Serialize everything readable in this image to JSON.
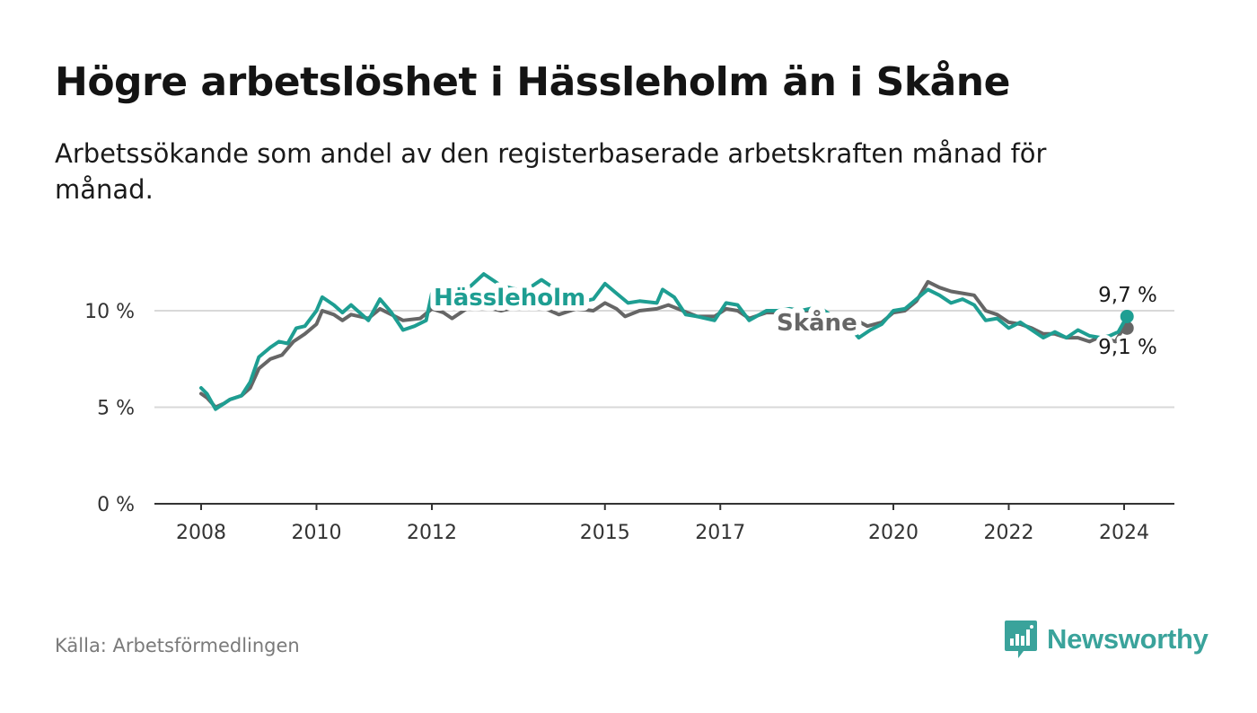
{
  "title": "Högre arbetslöshet i Hässleholm än i Skåne",
  "subtitle": "Arbetssökande som andel av den registerbaserade arbetskraften månad för månad.",
  "source": "Källa: Arbetsförmedlingen",
  "brand": {
    "name": "Newsworthy",
    "icon": "newsworthy-logo-icon",
    "color": "#3aa39b"
  },
  "colors": {
    "hassleholm": "#1e9e92",
    "skane": "#666666",
    "grid": "#d9d9d9",
    "axis": "#333333"
  },
  "chart_data": {
    "type": "line",
    "title": "Högre arbetslöshet i Hässleholm än i Skåne",
    "xlabel": "",
    "ylabel": "",
    "ylim": [
      0,
      12
    ],
    "xlim": [
      2007.75,
      2024.9
    ],
    "y_ticks": [
      {
        "value": 0,
        "label": "0 %"
      },
      {
        "value": 5,
        "label": "5 %"
      },
      {
        "value": 10,
        "label": "10 %"
      }
    ],
    "x_ticks": [
      {
        "value": 2008,
        "label": "2008"
      },
      {
        "value": 2010,
        "label": "2010"
      },
      {
        "value": 2012,
        "label": "2012"
      },
      {
        "value": 2015,
        "label": "2015"
      },
      {
        "value": 2017,
        "label": "2017"
      },
      {
        "value": 2020,
        "label": "2020"
      },
      {
        "value": 2022,
        "label": "2022"
      },
      {
        "value": 2024,
        "label": "2024"
      }
    ],
    "series": [
      {
        "name": "Skåne",
        "key": "skane",
        "label": "Skåne",
        "end_label": "9,1 %",
        "points": [
          [
            2008.0,
            5.7
          ],
          [
            2008.1,
            5.5
          ],
          [
            2008.25,
            5.0
          ],
          [
            2008.4,
            5.2
          ],
          [
            2008.5,
            5.4
          ],
          [
            2008.7,
            5.6
          ],
          [
            2008.85,
            6.0
          ],
          [
            2009.0,
            7.0
          ],
          [
            2009.2,
            7.5
          ],
          [
            2009.4,
            7.7
          ],
          [
            2009.6,
            8.4
          ],
          [
            2009.8,
            8.8
          ],
          [
            2010.0,
            9.3
          ],
          [
            2010.1,
            10.0
          ],
          [
            2010.3,
            9.8
          ],
          [
            2010.45,
            9.5
          ],
          [
            2010.6,
            9.8
          ],
          [
            2010.9,
            9.6
          ],
          [
            2011.1,
            10.1
          ],
          [
            2011.3,
            9.8
          ],
          [
            2011.5,
            9.5
          ],
          [
            2011.8,
            9.6
          ],
          [
            2012.0,
            10.1
          ],
          [
            2012.2,
            9.9
          ],
          [
            2012.35,
            9.6
          ],
          [
            2012.6,
            10.1
          ],
          [
            2012.9,
            10.2
          ],
          [
            2013.2,
            10.0
          ],
          [
            2013.5,
            10.2
          ],
          [
            2013.9,
            10.2
          ],
          [
            2014.2,
            9.8
          ],
          [
            2014.5,
            10.1
          ],
          [
            2014.8,
            10.0
          ],
          [
            2015.0,
            10.4
          ],
          [
            2015.2,
            10.1
          ],
          [
            2015.35,
            9.7
          ],
          [
            2015.6,
            10.0
          ],
          [
            2015.9,
            10.1
          ],
          [
            2016.1,
            10.3
          ],
          [
            2016.35,
            10.0
          ],
          [
            2016.6,
            9.7
          ],
          [
            2016.9,
            9.7
          ],
          [
            2017.1,
            10.1
          ],
          [
            2017.3,
            10.0
          ],
          [
            2017.5,
            9.6
          ],
          [
            2017.8,
            9.9
          ],
          [
            2018.0,
            9.9
          ],
          [
            2018.2,
            9.9
          ],
          [
            2018.4,
            10.0
          ],
          [
            2018.7,
            9.9
          ],
          [
            2019.0,
            9.7
          ],
          [
            2019.3,
            9.6
          ],
          [
            2019.55,
            9.2
          ],
          [
            2019.8,
            9.4
          ],
          [
            2020.0,
            9.9
          ],
          [
            2020.2,
            10.0
          ],
          [
            2020.4,
            10.5
          ],
          [
            2020.6,
            11.5
          ],
          [
            2020.8,
            11.2
          ],
          [
            2021.0,
            11.0
          ],
          [
            2021.2,
            10.9
          ],
          [
            2021.4,
            10.8
          ],
          [
            2021.6,
            10.0
          ],
          [
            2021.8,
            9.8
          ],
          [
            2022.0,
            9.4
          ],
          [
            2022.2,
            9.3
          ],
          [
            2022.4,
            9.1
          ],
          [
            2022.6,
            8.8
          ],
          [
            2022.8,
            8.8
          ],
          [
            2023.0,
            8.6
          ],
          [
            2023.2,
            8.6
          ],
          [
            2023.4,
            8.4
          ],
          [
            2023.55,
            8.6
          ],
          [
            2023.75,
            8.5
          ],
          [
            2023.85,
            8.4
          ],
          [
            2023.95,
            8.9
          ],
          [
            2024.05,
            9.1
          ]
        ]
      },
      {
        "name": "Hässleholm",
        "key": "hassleholm",
        "label": "Hässleholm",
        "end_label": "9,7 %",
        "points": [
          [
            2008.0,
            6.0
          ],
          [
            2008.1,
            5.7
          ],
          [
            2008.25,
            4.9
          ],
          [
            2008.4,
            5.2
          ],
          [
            2008.5,
            5.4
          ],
          [
            2008.7,
            5.6
          ],
          [
            2008.85,
            6.3
          ],
          [
            2009.0,
            7.6
          ],
          [
            2009.2,
            8.1
          ],
          [
            2009.35,
            8.4
          ],
          [
            2009.5,
            8.3
          ],
          [
            2009.65,
            9.1
          ],
          [
            2009.8,
            9.2
          ],
          [
            2010.0,
            10.0
          ],
          [
            2010.1,
            10.7
          ],
          [
            2010.3,
            10.3
          ],
          [
            2010.45,
            9.9
          ],
          [
            2010.6,
            10.3
          ],
          [
            2010.9,
            9.5
          ],
          [
            2011.1,
            10.6
          ],
          [
            2011.3,
            9.9
          ],
          [
            2011.5,
            9.0
          ],
          [
            2011.7,
            9.2
          ],
          [
            2011.9,
            9.5
          ],
          [
            2012.0,
            10.9
          ],
          [
            2012.2,
            11.2
          ],
          [
            2012.5,
            10.8
          ],
          [
            2012.9,
            11.9
          ],
          [
            2013.2,
            11.3
          ],
          [
            2013.6,
            11.0
          ],
          [
            2013.9,
            11.6
          ],
          [
            2014.2,
            11.0
          ],
          [
            2014.5,
            10.4
          ],
          [
            2014.8,
            10.6
          ],
          [
            2015.0,
            11.4
          ],
          [
            2015.2,
            10.9
          ],
          [
            2015.4,
            10.4
          ],
          [
            2015.6,
            10.5
          ],
          [
            2015.9,
            10.4
          ],
          [
            2016.0,
            11.1
          ],
          [
            2016.2,
            10.7
          ],
          [
            2016.4,
            9.8
          ],
          [
            2016.6,
            9.7
          ],
          [
            2016.9,
            9.5
          ],
          [
            2017.1,
            10.4
          ],
          [
            2017.3,
            10.3
          ],
          [
            2017.5,
            9.5
          ],
          [
            2017.8,
            10.0
          ],
          [
            2018.0,
            10.0
          ],
          [
            2018.2,
            10.1
          ],
          [
            2018.4,
            10.0
          ],
          [
            2018.7,
            10.2
          ],
          [
            2019.0,
            9.6
          ],
          [
            2019.2,
            9.3
          ],
          [
            2019.4,
            8.6
          ],
          [
            2019.6,
            9.0
          ],
          [
            2019.8,
            9.3
          ],
          [
            2020.0,
            10.0
          ],
          [
            2020.2,
            10.1
          ],
          [
            2020.4,
            10.6
          ],
          [
            2020.6,
            11.1
          ],
          [
            2020.8,
            10.8
          ],
          [
            2021.0,
            10.4
          ],
          [
            2021.2,
            10.6
          ],
          [
            2021.4,
            10.3
          ],
          [
            2021.6,
            9.5
          ],
          [
            2021.8,
            9.6
          ],
          [
            2022.0,
            9.1
          ],
          [
            2022.2,
            9.4
          ],
          [
            2022.4,
            9.0
          ],
          [
            2022.6,
            8.6
          ],
          [
            2022.8,
            8.9
          ],
          [
            2023.0,
            8.6
          ],
          [
            2023.2,
            9.0
          ],
          [
            2023.4,
            8.7
          ],
          [
            2023.6,
            8.6
          ],
          [
            2023.75,
            8.7
          ],
          [
            2023.9,
            8.9
          ],
          [
            2024.05,
            9.7
          ]
        ]
      }
    ],
    "annotations": [
      {
        "text": "Hässleholm",
        "series": "hassleholm"
      },
      {
        "text": "Skåne",
        "series": "skane"
      },
      {
        "text": "9,7 %",
        "series": "hassleholm",
        "position": "end"
      },
      {
        "text": "9,1 %",
        "series": "skane",
        "position": "end"
      }
    ]
  }
}
